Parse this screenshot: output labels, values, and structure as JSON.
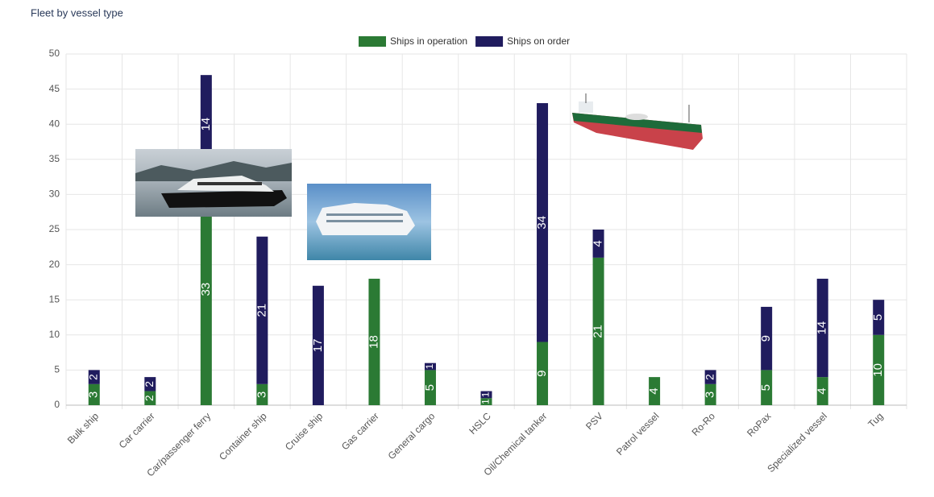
{
  "chart_data": {
    "type": "bar",
    "stacked": true,
    "title": "Fleet by vessel type",
    "categories": [
      "Bulk ship",
      "Car carrier",
      "Car/passenger ferry",
      "Container ship",
      "Cruise ship",
      "Gas carrier",
      "General cargo",
      "HSLC",
      "Oil/Chemical tanker",
      "PSV",
      "Patrol vessel",
      "Ro-Ro",
      "RoPax",
      "Specialized vessel",
      "Tug"
    ],
    "series": [
      {
        "name": "Ships in operation",
        "color": "#2b7a34",
        "values": [
          3,
          2,
          33,
          3,
          0,
          18,
          5,
          1,
          9,
          21,
          4,
          3,
          5,
          4,
          10
        ]
      },
      {
        "name": "Ships on order",
        "color": "#201c5e",
        "values": [
          2,
          2,
          14,
          21,
          17,
          0,
          1,
          1,
          34,
          4,
          0,
          2,
          9,
          14,
          5
        ]
      }
    ],
    "ylim": [
      0,
      50
    ],
    "yticks": [
      0,
      5,
      10,
      15,
      20,
      25,
      30,
      35,
      40,
      45,
      50
    ],
    "grid": true,
    "legend": "top"
  }
}
